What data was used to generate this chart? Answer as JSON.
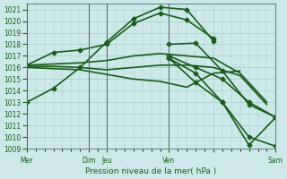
{
  "bg_color": "#cce8e8",
  "grid_color": "#aacccc",
  "line_color": "#1a5c1a",
  "xlabel": "Pression niveau de la mer( hPa )",
  "ylim": [
    1009,
    1021.5
  ],
  "yticks": [
    1009,
    1010,
    1011,
    1012,
    1013,
    1014,
    1015,
    1016,
    1017,
    1018,
    1019,
    1020,
    1021
  ],
  "xlim": [
    0,
    28
  ],
  "xtick_positions": [
    0,
    7,
    9,
    16,
    21,
    28
  ],
  "xtick_labels": [
    "Mer",
    "Dim",
    "Jeu",
    "Ven",
    "",
    "Sam"
  ],
  "vline_positions": [
    0,
    7,
    9,
    16,
    28
  ],
  "series": [
    {
      "x": [
        0,
        3,
        6,
        9,
        12,
        15,
        18,
        21
      ],
      "y": [
        1013.0,
        1014.2,
        1016.0,
        1018.2,
        1020.2,
        1021.2,
        1021.0,
        1018.3
      ],
      "marker": "D",
      "markersize": 2.5,
      "linewidth": 1.2
    },
    {
      "x": [
        0,
        3,
        6,
        9,
        12,
        15,
        18,
        21
      ],
      "y": [
        1016.2,
        1017.3,
        1017.5,
        1018.0,
        1019.8,
        1020.7,
        1020.1,
        1018.5
      ],
      "marker": "D",
      "markersize": 2.5,
      "linewidth": 1.2
    },
    {
      "x": [
        0,
        3,
        6,
        9,
        12,
        15,
        18,
        21,
        24,
        27
      ],
      "y": [
        1016.2,
        1016.3,
        1016.4,
        1016.6,
        1017.0,
        1017.2,
        1017.0,
        1016.8,
        1015.5,
        1013.0
      ],
      "marker": null,
      "markersize": 0,
      "linewidth": 1.2
    },
    {
      "x": [
        0,
        3,
        6,
        9,
        12,
        15,
        18,
        21,
        24,
        27
      ],
      "y": [
        1016.1,
        1016.1,
        1016.0,
        1015.8,
        1016.0,
        1016.2,
        1016.2,
        1016.0,
        1015.3,
        1012.8
      ],
      "marker": null,
      "markersize": 0,
      "linewidth": 1.2
    },
    {
      "x": [
        0,
        3,
        6,
        9,
        12,
        15,
        18,
        21,
        24
      ],
      "y": [
        1016.0,
        1015.9,
        1015.8,
        1015.4,
        1015.0,
        1014.8,
        1014.3,
        1015.5,
        1015.7
      ],
      "marker": null,
      "markersize": 0,
      "linewidth": 1.2
    },
    {
      "x": [
        16,
        19,
        22,
        25,
        28
      ],
      "y": [
        1016.8,
        1014.7,
        1013.0,
        1009.3,
        1011.7
      ],
      "marker": "D",
      "markersize": 2.5,
      "linewidth": 1.2
    },
    {
      "x": [
        16,
        19,
        22,
        25,
        28
      ],
      "y": [
        1018.0,
        1018.1,
        1015.7,
        1012.8,
        1011.7
      ],
      "marker": "D",
      "markersize": 2.5,
      "linewidth": 1.2
    },
    {
      "x": [
        16,
        19,
        22,
        25,
        28
      ],
      "y": [
        1016.8,
        1015.5,
        1013.0,
        1010.0,
        1009.2
      ],
      "marker": "D",
      "markersize": 2.5,
      "linewidth": 1.2
    },
    {
      "x": [
        16,
        19,
        22,
        25,
        28
      ],
      "y": [
        1017.0,
        1016.0,
        1015.0,
        1013.0,
        1011.7
      ],
      "marker": "D",
      "markersize": 2.5,
      "linewidth": 1.2
    }
  ]
}
